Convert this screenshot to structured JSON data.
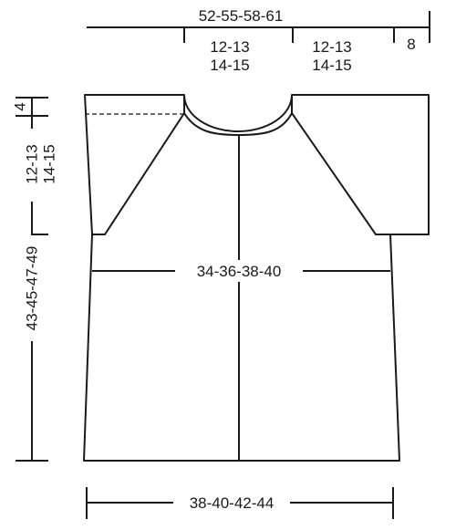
{
  "measurements": {
    "top_width": "52-55-58-61",
    "raglan_left_line1": "12-13",
    "raglan_left_line2": "14-15",
    "raglan_right_line1": "12-13",
    "raglan_right_line2": "14-15",
    "sleeve_end": "8",
    "shoulder_height": "4",
    "raglan_height_line1": "12-13",
    "raglan_height_line2": "14-15",
    "total_length": "43-45-47-49",
    "chest_width": "34-36-38-40",
    "bottom_width": "38-40-42-44"
  }
}
